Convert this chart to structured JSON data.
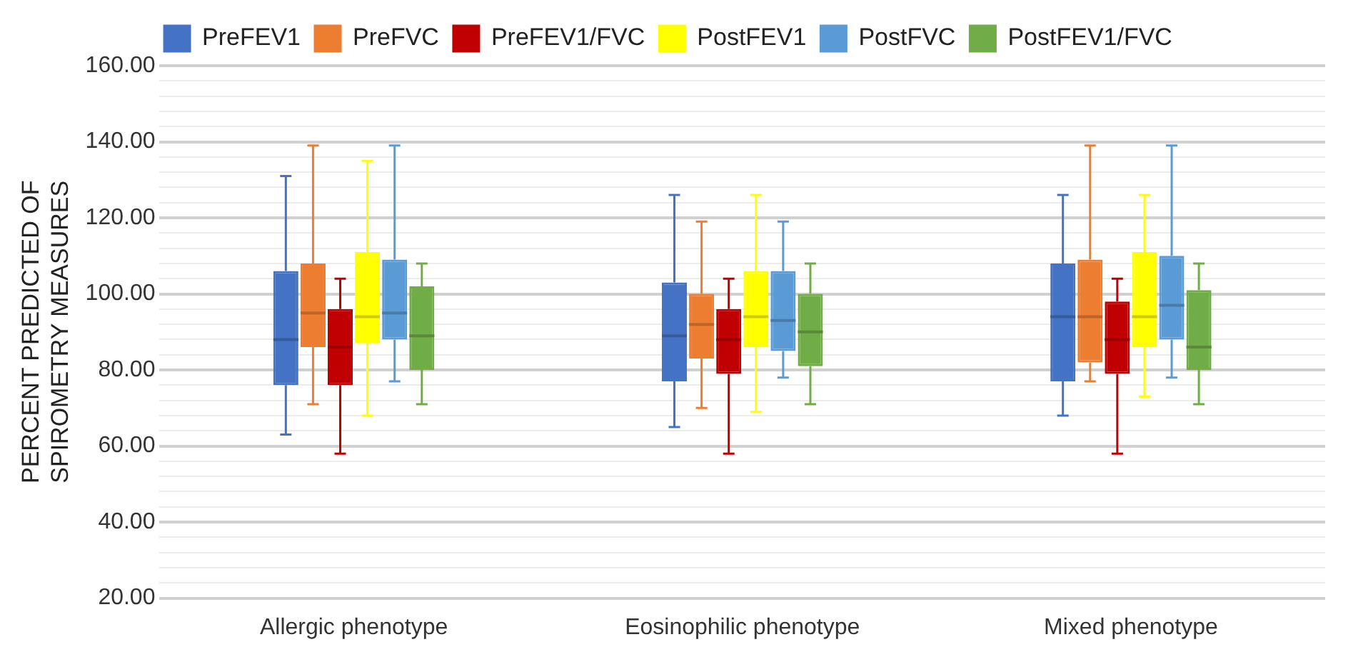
{
  "chart_data": {
    "type": "box",
    "ylabel": "PERCENT PREDICTED OF SPIROMETRY MEASURES",
    "categories": [
      "Allergic phenotype",
      "Eosinophilic phenotype",
      "Mixed phenotype"
    ],
    "ylim": [
      20,
      160
    ],
    "yticks": [
      {
        "value": 20,
        "label": "20.00"
      },
      {
        "value": 24,
        "label": null
      },
      {
        "value": 28,
        "label": null
      },
      {
        "value": 32,
        "label": null
      },
      {
        "value": 36,
        "label": null
      },
      {
        "value": 40,
        "label": "40.00"
      },
      {
        "value": 44,
        "label": null
      },
      {
        "value": 48,
        "label": null
      },
      {
        "value": 52,
        "label": null
      },
      {
        "value": 56,
        "label": null
      },
      {
        "value": 60,
        "label": "60.00"
      },
      {
        "value": 64,
        "label": null
      },
      {
        "value": 68,
        "label": null
      },
      {
        "value": 72,
        "label": null
      },
      {
        "value": 76,
        "label": null
      },
      {
        "value": 80,
        "label": "80.00"
      },
      {
        "value": 84,
        "label": null
      },
      {
        "value": 88,
        "label": null
      },
      {
        "value": 92,
        "label": null
      },
      {
        "value": 96,
        "label": null
      },
      {
        "value": 100,
        "label": "100.00"
      },
      {
        "value": 104,
        "label": null
      },
      {
        "value": 108,
        "label": null
      },
      {
        "value": 112,
        "label": null
      },
      {
        "value": 116,
        "label": null
      },
      {
        "value": 120,
        "label": "120.00"
      },
      {
        "value": 124,
        "label": null
      },
      {
        "value": 128,
        "label": null
      },
      {
        "value": 132,
        "label": null
      },
      {
        "value": 136,
        "label": null
      },
      {
        "value": 140,
        "label": "140.00"
      },
      {
        "value": 144,
        "label": null
      },
      {
        "value": 148,
        "label": null
      },
      {
        "value": 152,
        "label": null
      },
      {
        "value": 156,
        "label": null
      },
      {
        "value": 160,
        "label": "160.00"
      }
    ],
    "grid": "y",
    "legend": "top",
    "series": [
      {
        "name": "PreFEV1",
        "color": "#4472c4",
        "boxes": [
          {
            "low": 63,
            "q1": 76,
            "median": 88,
            "q3": 106,
            "high": 131
          },
          {
            "low": 65,
            "q1": 77,
            "median": 89,
            "q3": 103,
            "high": 126
          },
          {
            "low": 68,
            "q1": 77,
            "median": 94,
            "q3": 108,
            "high": 126
          }
        ]
      },
      {
        "name": "PreFVC",
        "color": "#ed7d31",
        "boxes": [
          {
            "low": 71,
            "q1": 86,
            "median": 95,
            "q3": 108,
            "high": 139
          },
          {
            "low": 70,
            "q1": 83,
            "median": 92,
            "q3": 100,
            "high": 119
          },
          {
            "low": 77,
            "q1": 82,
            "median": 94,
            "q3": 109,
            "high": 139
          }
        ]
      },
      {
        "name": "PreFEV1/FVC",
        "color": "#c00000",
        "boxes": [
          {
            "low": 58,
            "q1": 76,
            "median": 86,
            "q3": 96,
            "high": 104
          },
          {
            "low": 58,
            "q1": 79,
            "median": 88,
            "q3": 96,
            "high": 104
          },
          {
            "low": 58,
            "q1": 79,
            "median": 88,
            "q3": 98,
            "high": 104
          }
        ]
      },
      {
        "name": "PostFEV1",
        "color": "#ffff00",
        "boxes": [
          {
            "low": 68,
            "q1": 87,
            "median": 94,
            "q3": 111,
            "high": 135
          },
          {
            "low": 69,
            "q1": 86,
            "median": 94,
            "q3": 106,
            "high": 126
          },
          {
            "low": 73,
            "q1": 86,
            "median": 94,
            "q3": 111,
            "high": 126
          }
        ]
      },
      {
        "name": "PostFVC",
        "color": "#5b9bd5",
        "boxes": [
          {
            "low": 77,
            "q1": 88,
            "median": 95,
            "q3": 109,
            "high": 139
          },
          {
            "low": 78,
            "q1": 85,
            "median": 93,
            "q3": 106,
            "high": 119
          },
          {
            "low": 78,
            "q1": 88,
            "median": 97,
            "q3": 110,
            "high": 139
          }
        ]
      },
      {
        "name": "PostFEV1/FVC",
        "color": "#70ad47",
        "boxes": [
          {
            "low": 71,
            "q1": 80,
            "median": 89,
            "q3": 102,
            "high": 108
          },
          {
            "low": 71,
            "q1": 81,
            "median": 90,
            "q3": 100,
            "high": 108
          },
          {
            "low": 71,
            "q1": 80,
            "median": 86,
            "q3": 101,
            "high": 108
          }
        ]
      }
    ]
  }
}
